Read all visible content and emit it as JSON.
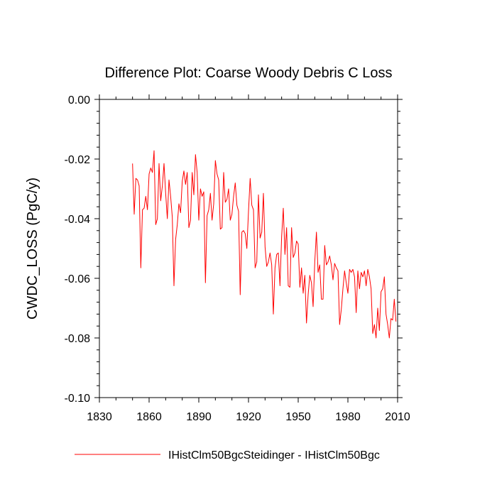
{
  "chart_data": {
    "type": "line",
    "title": "Difference Plot: Coarse Woody Debris C Loss",
    "xlabel": "",
    "ylabel": "CWDC_LOSS  (PgC/y)",
    "xlim": [
      1830,
      2010
    ],
    "ylim": [
      -0.1,
      0.0
    ],
    "xticks": [
      "1830",
      "1860",
      "1890",
      "1920",
      "1950",
      "1980",
      "2010"
    ],
    "yticks": [
      "0.00",
      "-0.02",
      "-0.04",
      "-0.06",
      "-0.08",
      "-0.10"
    ],
    "grid": false,
    "legend_position": "bottom",
    "series": [
      {
        "name": "IHistClm50BgcSteidinger - IHistClm50Bgc",
        "color": "#ff0000",
        "x": [
          1850,
          1851,
          1852,
          1853,
          1854,
          1855,
          1856,
          1857,
          1858,
          1859,
          1860,
          1861,
          1862,
          1863,
          1864,
          1865,
          1866,
          1867,
          1868,
          1869,
          1870,
          1871,
          1872,
          1873,
          1874,
          1875,
          1876,
          1877,
          1878,
          1879,
          1880,
          1881,
          1882,
          1883,
          1884,
          1885,
          1886,
          1887,
          1888,
          1889,
          1890,
          1891,
          1892,
          1893,
          1894,
          1895,
          1896,
          1897,
          1898,
          1899,
          1900,
          1901,
          1902,
          1903,
          1904,
          1905,
          1906,
          1907,
          1908,
          1909,
          1910,
          1911,
          1912,
          1913,
          1914,
          1915,
          1916,
          1917,
          1918,
          1919,
          1920,
          1921,
          1922,
          1923,
          1924,
          1925,
          1926,
          1927,
          1928,
          1929,
          1930,
          1931,
          1932,
          1933,
          1934,
          1935,
          1936,
          1937,
          1938,
          1939,
          1940,
          1941,
          1942,
          1943,
          1944,
          1945,
          1946,
          1947,
          1948,
          1949,
          1950,
          1951,
          1952,
          1953,
          1954,
          1955,
          1956,
          1957,
          1958,
          1959,
          1960,
          1961,
          1962,
          1963,
          1964,
          1965,
          1966,
          1967,
          1968,
          1969,
          1970,
          1971,
          1972,
          1973,
          1974,
          1975,
          1976,
          1977,
          1978,
          1979,
          1980,
          1981,
          1982,
          1983,
          1984,
          1985,
          1986,
          1987,
          1988,
          1989,
          1990,
          1991,
          1992,
          1993,
          1994,
          1995,
          1996,
          1997,
          1998,
          1999,
          2000,
          2001,
          2002,
          2003,
          2004,
          2005,
          2006,
          2007,
          2008,
          2009
        ],
        "y": [
          -0.0215,
          -0.0385,
          -0.0265,
          -0.027,
          -0.029,
          -0.0565,
          -0.037,
          -0.0365,
          -0.0325,
          -0.037,
          -0.025,
          -0.023,
          -0.0245,
          -0.0172,
          -0.042,
          -0.04,
          -0.0215,
          -0.034,
          -0.029,
          -0.0215,
          -0.0315,
          -0.04,
          -0.027,
          -0.0325,
          -0.0395,
          -0.0625,
          -0.047,
          -0.042,
          -0.035,
          -0.038,
          -0.0275,
          -0.024,
          -0.0285,
          -0.0245,
          -0.043,
          -0.0405,
          -0.0245,
          -0.032,
          -0.0185,
          -0.0245,
          -0.0405,
          -0.03,
          -0.0325,
          -0.031,
          -0.0615,
          -0.039,
          -0.037,
          -0.0315,
          -0.0405,
          -0.035,
          -0.0205,
          -0.025,
          -0.027,
          -0.0435,
          -0.043,
          -0.0245,
          -0.0345,
          -0.0335,
          -0.03,
          -0.0405,
          -0.0385,
          -0.0325,
          -0.028,
          -0.0355,
          -0.0375,
          -0.0655,
          -0.0445,
          -0.044,
          -0.045,
          -0.05,
          -0.0375,
          -0.0265,
          -0.0355,
          -0.037,
          -0.0565,
          -0.0545,
          -0.032,
          -0.0465,
          -0.0445,
          -0.0315,
          -0.0495,
          -0.056,
          -0.0545,
          -0.0515,
          -0.0555,
          -0.072,
          -0.0565,
          -0.052,
          -0.0515,
          -0.0625,
          -0.046,
          -0.0365,
          -0.052,
          -0.043,
          -0.0625,
          -0.063,
          -0.043,
          -0.053,
          -0.0515,
          -0.0475,
          -0.0485,
          -0.063,
          -0.0565,
          -0.065,
          -0.059,
          -0.075,
          -0.0655,
          -0.059,
          -0.0615,
          -0.0695,
          -0.0545,
          -0.0445,
          -0.058,
          -0.0555,
          -0.067,
          -0.067,
          -0.049,
          -0.0555,
          -0.0545,
          -0.0525,
          -0.0555,
          -0.0605,
          -0.055,
          -0.0565,
          -0.0575,
          -0.0755,
          -0.0705,
          -0.0635,
          -0.0575,
          -0.0615,
          -0.065,
          -0.057,
          -0.058,
          -0.057,
          -0.0595,
          -0.0715,
          -0.0575,
          -0.0635,
          -0.058,
          -0.0595,
          -0.0575,
          -0.0625,
          -0.057,
          -0.0595,
          -0.0635,
          -0.0785,
          -0.0755,
          -0.08,
          -0.07,
          -0.0775,
          -0.0645,
          -0.0635,
          -0.0595,
          -0.072,
          -0.0755,
          -0.08,
          -0.0735,
          -0.074,
          -0.067,
          -0.0745
        ]
      }
    ]
  }
}
